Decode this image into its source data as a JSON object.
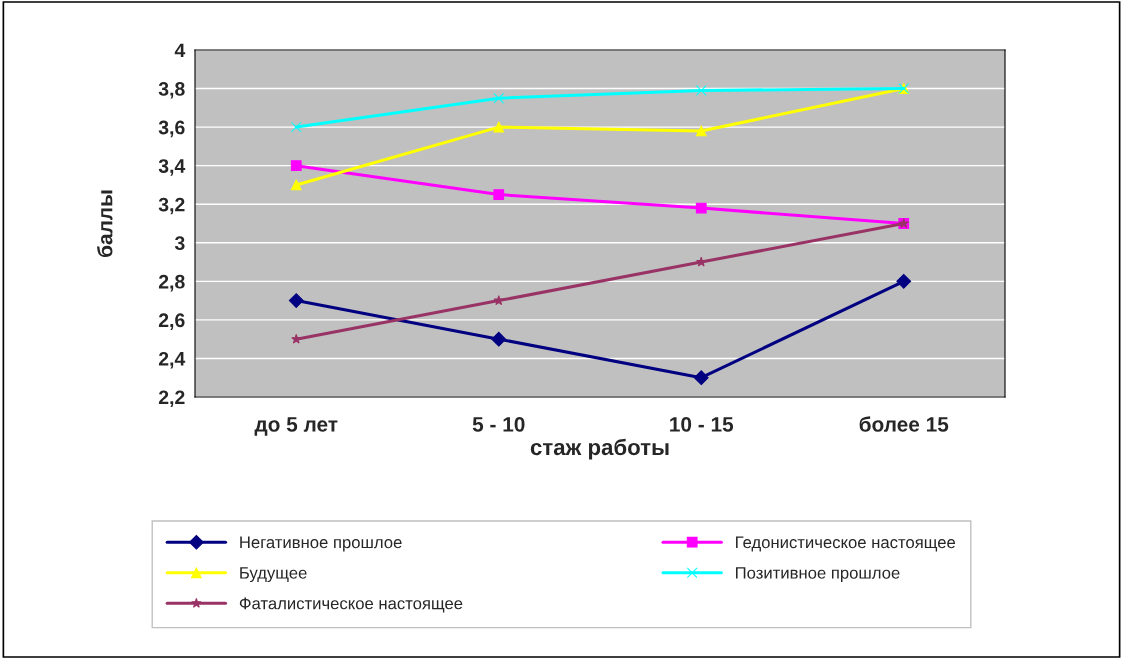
{
  "chart_data": {
    "type": "line",
    "xlabel": "стаж работы",
    "ylabel": "баллы",
    "categories": [
      "до 5 лет",
      "5 - 10",
      "10 - 15",
      "более 15"
    ],
    "series": [
      {
        "name": "Негативное прошлое",
        "color": "#000080",
        "marker": "diamond",
        "values": [
          2.7,
          2.5,
          2.3,
          2.8
        ]
      },
      {
        "name": "Гедонистическое настоящее",
        "color": "#ff00ff",
        "marker": "square",
        "values": [
          3.4,
          3.25,
          3.18,
          3.1
        ]
      },
      {
        "name": "Будущее",
        "color": "#ffff00",
        "marker": "triangle",
        "values": [
          3.3,
          3.6,
          3.58,
          3.8
        ]
      },
      {
        "name": "Позитивное прошлое",
        "color": "#00ffff",
        "marker": "cross",
        "values": [
          3.6,
          3.75,
          3.79,
          3.8
        ]
      },
      {
        "name": "Фаталистическое настоящее",
        "color": "#993366",
        "marker": "star",
        "values": [
          2.5,
          2.7,
          2.9,
          3.1
        ]
      }
    ],
    "ylim": [
      2.2,
      4
    ],
    "yticks": [
      {
        "value": 2.2,
        "label": "2,2"
      },
      {
        "value": 2.4,
        "label": "2,4"
      },
      {
        "value": 2.6,
        "label": "2,6"
      },
      {
        "value": 2.8,
        "label": "2,8"
      },
      3,
      {
        "value": 3.2,
        "label": "3,2"
      },
      {
        "value": 3.4,
        "label": "3,4"
      },
      {
        "value": 3.6,
        "label": "3,6"
      },
      {
        "value": 3.8,
        "label": "3,8"
      },
      4
    ],
    "grid": "y",
    "legend": "bottom"
  }
}
